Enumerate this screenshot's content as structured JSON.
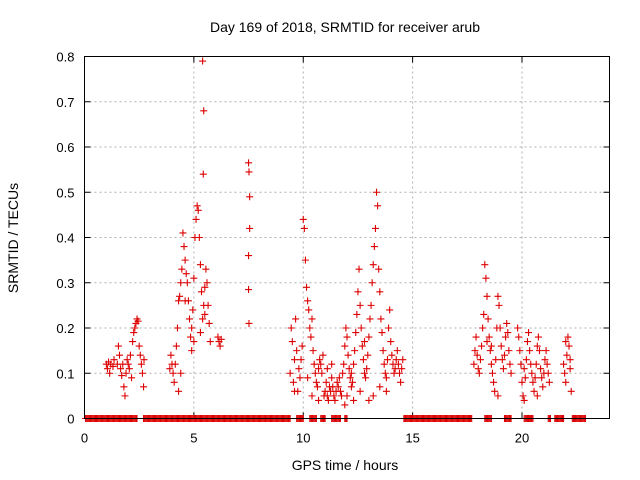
{
  "chart_data": {
    "type": "scatter",
    "title": "Day 169 of 2018, SRMTID for receiver arub",
    "xlabel": "GPS time / hours",
    "ylabel": "SRMTID / TECUs",
    "xlim": [
      0,
      24
    ],
    "ylim": [
      0,
      0.8
    ],
    "x_ticks": [
      0,
      5,
      10,
      15,
      20
    ],
    "y_ticks": [
      0,
      0.1,
      0.2,
      0.3,
      0.4,
      0.5,
      0.6,
      0.7,
      0.8
    ],
    "x_tick_labels": [
      "0",
      "5",
      "10",
      "15",
      "20"
    ],
    "y_tick_labels": [
      "0",
      "0.1",
      "0.2",
      "0.3",
      "0.4",
      "0.5",
      "0.6",
      "0.7",
      "0.8"
    ],
    "grid": true,
    "marker": "+",
    "color": "#dd0000",
    "series": [
      {
        "name": "SRMTID",
        "points": [
          [
            1.0,
            0.12
          ],
          [
            1.05,
            0.11
          ],
          [
            1.1,
            0.125
          ],
          [
            1.15,
            0.1
          ],
          [
            1.2,
            0.12
          ],
          [
            1.3,
            0.115
          ],
          [
            1.35,
            0.13
          ],
          [
            1.5,
            0.12
          ],
          [
            1.55,
            0.16
          ],
          [
            1.6,
            0.14
          ],
          [
            1.65,
            0.11
          ],
          [
            1.7,
            0.095
          ],
          [
            1.75,
            0.12
          ],
          [
            1.8,
            0.07
          ],
          [
            1.85,
            0.05
          ],
          [
            1.9,
            0.1
          ],
          [
            1.95,
            0.13
          ],
          [
            2.0,
            0.12
          ],
          [
            2.05,
            0.11
          ],
          [
            2.1,
            0.14
          ],
          [
            2.15,
            0.09
          ],
          [
            2.2,
            0.17
          ],
          [
            2.25,
            0.19
          ],
          [
            2.3,
            0.2
          ],
          [
            2.35,
            0.21
          ],
          [
            2.4,
            0.22
          ],
          [
            2.45,
            0.215
          ],
          [
            2.5,
            0.16
          ],
          [
            2.55,
            0.14
          ],
          [
            2.6,
            0.12
          ],
          [
            2.65,
            0.1
          ],
          [
            2.7,
            0.07
          ],
          [
            2.72,
            0.13
          ],
          [
            3.9,
            0.11
          ],
          [
            3.95,
            0.14
          ],
          [
            4.0,
            0.12
          ],
          [
            4.05,
            0.1
          ],
          [
            4.1,
            0.08
          ],
          [
            4.15,
            0.12
          ],
          [
            4.2,
            0.16
          ],
          [
            4.25,
            0.2
          ],
          [
            4.3,
            0.26
          ],
          [
            4.35,
            0.27
          ],
          [
            4.4,
            0.3
          ],
          [
            4.45,
            0.33
          ],
          [
            4.5,
            0.41
          ],
          [
            4.55,
            0.38
          ],
          [
            4.6,
            0.35
          ],
          [
            4.65,
            0.32
          ],
          [
            4.7,
            0.3
          ],
          [
            4.75,
            0.26
          ],
          [
            4.8,
            0.22
          ],
          [
            4.85,
            0.18
          ],
          [
            4.9,
            0.2
          ],
          [
            4.95,
            0.24
          ],
          [
            5.0,
            0.31
          ],
          [
            5.05,
            0.4
          ],
          [
            5.1,
            0.44
          ],
          [
            5.15,
            0.47
          ],
          [
            5.2,
            0.46
          ],
          [
            5.25,
            0.4
          ],
          [
            5.3,
            0.34
          ],
          [
            5.35,
            0.28
          ],
          [
            5.4,
            0.22
          ],
          [
            5.45,
            0.25
          ],
          [
            5.5,
            0.29
          ],
          [
            5.55,
            0.33
          ],
          [
            5.6,
            0.3
          ],
          [
            5.65,
            0.25
          ],
          [
            5.7,
            0.21
          ],
          [
            5.75,
            0.17
          ],
          [
            4.6,
            0.26
          ],
          [
            4.9,
            0.15
          ],
          [
            5.0,
            0.17
          ],
          [
            5.3,
            0.19
          ],
          [
            5.5,
            0.23
          ],
          [
            4.3,
            0.06
          ],
          [
            4.4,
            0.1
          ],
          [
            5.4,
            0.79
          ],
          [
            5.45,
            0.68
          ],
          [
            5.43,
            0.54
          ],
          [
            6.1,
            0.18
          ],
          [
            6.15,
            0.17
          ],
          [
            6.2,
            0.16
          ],
          [
            6.25,
            0.175
          ],
          [
            7.5,
            0.565
          ],
          [
            7.52,
            0.545
          ],
          [
            7.55,
            0.49
          ],
          [
            7.55,
            0.42
          ],
          [
            7.5,
            0.36
          ],
          [
            7.5,
            0.285
          ],
          [
            7.52,
            0.21
          ],
          [
            9.4,
            0.1
          ],
          [
            9.45,
            0.2
          ],
          [
            9.5,
            0.17
          ],
          [
            9.55,
            0.08
          ],
          [
            9.6,
            0.13
          ],
          [
            9.65,
            0.22
          ],
          [
            9.7,
            0.15
          ],
          [
            9.75,
            0.06
          ],
          [
            9.8,
            0.11
          ],
          [
            9.85,
            0.09
          ],
          [
            9.9,
            0.13
          ],
          [
            9.95,
            0.16
          ],
          [
            10.0,
            0.44
          ],
          [
            10.05,
            0.42
          ],
          [
            10.1,
            0.35
          ],
          [
            10.15,
            0.29
          ],
          [
            10.2,
            0.26
          ],
          [
            10.25,
            0.24
          ],
          [
            10.3,
            0.2
          ],
          [
            10.35,
            0.18
          ],
          [
            10.4,
            0.22
          ],
          [
            10.45,
            0.15
          ],
          [
            10.5,
            0.12
          ],
          [
            10.55,
            0.1
          ],
          [
            10.6,
            0.08
          ],
          [
            10.65,
            0.07
          ],
          [
            10.7,
            0.11
          ],
          [
            10.75,
            0.13
          ],
          [
            10.8,
            0.12
          ],
          [
            10.85,
            0.1
          ],
          [
            10.9,
            0.14
          ],
          [
            10.95,
            0.05
          ],
          [
            11.0,
            0.06
          ],
          [
            11.05,
            0.08
          ],
          [
            11.1,
            0.05
          ],
          [
            11.15,
            0.04
          ],
          [
            11.2,
            0.07
          ],
          [
            11.25,
            0.06
          ],
          [
            11.3,
            0.09
          ],
          [
            11.35,
            0.07
          ],
          [
            11.4,
            0.05
          ],
          [
            11.45,
            0.04
          ],
          [
            11.5,
            0.06
          ],
          [
            11.55,
            0.08
          ],
          [
            11.6,
            0.07
          ],
          [
            11.65,
            0.09
          ],
          [
            11.7,
            0.06
          ],
          [
            11.75,
            0.05
          ],
          [
            11.8,
            0.1
          ],
          [
            11.85,
            0.12
          ],
          [
            11.9,
            0.16
          ],
          [
            11.95,
            0.2
          ],
          [
            12.0,
            0.18
          ],
          [
            12.05,
            0.14
          ],
          [
            12.1,
            0.11
          ],
          [
            12.15,
            0.09
          ],
          [
            12.2,
            0.07
          ],
          [
            12.25,
            0.08
          ],
          [
            12.3,
            0.12
          ],
          [
            12.35,
            0.15
          ],
          [
            12.4,
            0.19
          ],
          [
            12.45,
            0.23
          ],
          [
            12.5,
            0.28
          ],
          [
            12.55,
            0.33
          ],
          [
            12.6,
            0.25
          ],
          [
            12.65,
            0.2
          ],
          [
            12.7,
            0.16
          ],
          [
            12.75,
            0.13
          ],
          [
            12.8,
            0.1
          ],
          [
            12.85,
            0.09
          ],
          [
            12.9,
            0.11
          ],
          [
            12.95,
            0.14
          ],
          [
            13.0,
            0.18
          ],
          [
            13.05,
            0.22
          ],
          [
            13.1,
            0.25
          ],
          [
            13.15,
            0.3
          ],
          [
            13.2,
            0.34
          ],
          [
            13.25,
            0.38
          ],
          [
            13.3,
            0.42
          ],
          [
            13.35,
            0.5
          ],
          [
            13.4,
            0.47
          ],
          [
            13.45,
            0.33
          ],
          [
            13.5,
            0.28
          ],
          [
            13.55,
            0.22
          ],
          [
            13.6,
            0.19
          ],
          [
            13.65,
            0.15
          ],
          [
            13.7,
            0.12
          ],
          [
            13.75,
            0.1
          ],
          [
            13.8,
            0.09
          ],
          [
            13.85,
            0.13
          ],
          [
            13.9,
            0.2
          ],
          [
            13.95,
            0.24
          ],
          [
            14.0,
            0.17
          ],
          [
            14.05,
            0.14
          ],
          [
            14.1,
            0.12
          ],
          [
            14.15,
            0.1
          ],
          [
            14.2,
            0.11
          ],
          [
            14.25,
            0.13
          ],
          [
            14.3,
            0.15
          ],
          [
            14.35,
            0.12
          ],
          [
            14.4,
            0.1
          ],
          [
            14.45,
            0.08
          ],
          [
            14.5,
            0.11
          ],
          [
            14.55,
            0.13
          ],
          [
            12.0,
            0.05
          ],
          [
            12.3,
            0.04
          ],
          [
            12.6,
            0.06
          ],
          [
            13.0,
            0.04
          ],
          [
            13.2,
            0.05
          ],
          [
            13.5,
            0.07
          ],
          [
            13.8,
            0.06
          ],
          [
            12.8,
            0.17
          ],
          [
            9.6,
            0.06
          ],
          [
            10.2,
            0.09
          ],
          [
            10.4,
            0.05
          ],
          [
            10.7,
            0.04
          ],
          [
            11.1,
            0.11
          ],
          [
            11.3,
            0.12
          ],
          [
            11.9,
            0.03
          ],
          [
            12.2,
            0.1
          ],
          [
            17.8,
            0.12
          ],
          [
            17.85,
            0.15
          ],
          [
            17.9,
            0.18
          ],
          [
            17.95,
            0.14
          ],
          [
            18.0,
            0.11
          ],
          [
            18.05,
            0.1
          ],
          [
            18.1,
            0.13
          ],
          [
            18.15,
            0.16
          ],
          [
            18.2,
            0.2
          ],
          [
            18.25,
            0.23
          ],
          [
            18.3,
            0.34
          ],
          [
            18.35,
            0.31
          ],
          [
            18.4,
            0.27
          ],
          [
            18.45,
            0.22
          ],
          [
            18.5,
            0.18
          ],
          [
            18.55,
            0.15
          ],
          [
            18.6,
            0.12
          ],
          [
            18.65,
            0.1
          ],
          [
            18.7,
            0.08
          ],
          [
            18.75,
            0.06
          ],
          [
            18.8,
            0.13
          ],
          [
            18.85,
            0.2
          ],
          [
            18.9,
            0.27
          ],
          [
            18.95,
            0.25
          ],
          [
            19.0,
            0.2
          ],
          [
            19.05,
            0.16
          ],
          [
            19.1,
            0.13
          ],
          [
            19.15,
            0.11
          ],
          [
            19.2,
            0.14
          ],
          [
            19.25,
            0.18
          ],
          [
            19.3,
            0.21
          ],
          [
            19.35,
            0.19
          ],
          [
            19.4,
            0.15
          ],
          [
            19.45,
            0.12
          ],
          [
            19.5,
            0.1
          ],
          [
            18.4,
            0.17
          ],
          [
            18.6,
            0.16
          ],
          [
            18.9,
            0.05
          ],
          [
            19.8,
            0.2
          ],
          [
            19.85,
            0.18
          ],
          [
            19.9,
            0.15
          ],
          [
            19.95,
            0.12
          ],
          [
            20.0,
            0.08
          ],
          [
            20.05,
            0.05
          ],
          [
            20.1,
            0.04
          ],
          [
            20.15,
            0.09
          ],
          [
            20.2,
            0.13
          ],
          [
            20.25,
            0.17
          ],
          [
            20.3,
            0.19
          ],
          [
            20.35,
            0.15
          ],
          [
            20.4,
            0.12
          ],
          [
            20.45,
            0.1
          ],
          [
            20.5,
            0.08
          ],
          [
            20.55,
            0.06
          ],
          [
            20.6,
            0.09
          ],
          [
            20.65,
            0.12
          ],
          [
            20.7,
            0.16
          ],
          [
            20.75,
            0.18
          ],
          [
            20.8,
            0.15
          ],
          [
            20.85,
            0.11
          ],
          [
            20.9,
            0.09
          ],
          [
            20.95,
            0.07
          ],
          [
            21.0,
            0.1
          ],
          [
            21.05,
            0.13
          ],
          [
            21.1,
            0.15
          ],
          [
            21.15,
            0.12
          ],
          [
            21.2,
            0.1
          ],
          [
            21.25,
            0.08
          ],
          [
            20.1,
            0.11
          ],
          [
            20.7,
            0.05
          ],
          [
            21.9,
            0.12
          ],
          [
            21.95,
            0.1
          ],
          [
            22.0,
            0.08
          ],
          [
            22.05,
            0.14
          ],
          [
            22.1,
            0.18
          ],
          [
            22.15,
            0.16
          ],
          [
            22.2,
            0.13
          ],
          [
            22.25,
            0.06
          ],
          [
            22.0,
            0.17
          ],
          [
            22.2,
            0.11
          ]
        ],
        "zero_ranges": [
          [
            0.05,
            2.4
          ],
          [
            2.7,
            9.4
          ],
          [
            9.7,
            10.0
          ],
          [
            10.3,
            10.6
          ],
          [
            10.8,
            11.0
          ],
          [
            11.3,
            11.7
          ],
          [
            11.9,
            12.0
          ],
          [
            14.6,
            17.7
          ],
          [
            18.3,
            18.6
          ],
          [
            19.2,
            19.5
          ],
          [
            20.1,
            20.4
          ],
          [
            20.4,
            20.5
          ],
          [
            21.2,
            21.3
          ],
          [
            21.5,
            21.9
          ],
          [
            22.3,
            22.9
          ]
        ]
      }
    ]
  }
}
